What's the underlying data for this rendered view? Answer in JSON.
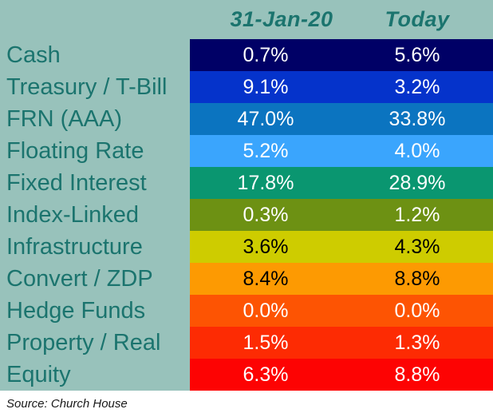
{
  "colors": {
    "background": "#98c2bb",
    "heading_text": "#1b746e",
    "label_text": "#1b746e",
    "footer_text": "#1a1a1a"
  },
  "header": {
    "col_jan": "31-Jan-20",
    "col_today": "Today"
  },
  "rows": [
    {
      "label": "Cash",
      "jan": "0.7%",
      "today": "5.6%",
      "color": "#000066",
      "text_color": "#ffffff"
    },
    {
      "label": "Treasury / T-Bill",
      "jan": "9.1%",
      "today": "3.2%",
      "color": "#0533cb",
      "text_color": "#ffffff"
    },
    {
      "label": "FRN (AAA)",
      "jan": "47.0%",
      "today": "33.8%",
      "color": "#0b74c0",
      "text_color": "#ffffff"
    },
    {
      "label": "Floating Rate",
      "jan": "5.2%",
      "today": "4.0%",
      "color": "#3aa5fd",
      "text_color": "#ffffff"
    },
    {
      "label": "Fixed Interest",
      "jan": "17.8%",
      "today": "28.9%",
      "color": "#0a9670",
      "text_color": "#ffffff"
    },
    {
      "label": "Index-Linked",
      "jan": "0.3%",
      "today": "1.2%",
      "color": "#6d9113",
      "text_color": "#ffffff"
    },
    {
      "label": "Infrastructure",
      "jan": "3.6%",
      "today": "4.3%",
      "color": "#cecc00",
      "text_color": "#000000"
    },
    {
      "label": "Convert / ZDP",
      "jan": "8.4%",
      "today": "8.8%",
      "color": "#fd9a02",
      "text_color": "#000000"
    },
    {
      "label": "Hedge Funds",
      "jan": "0.0%",
      "today": "0.0%",
      "color": "#fd5403",
      "text_color": "#ffffff"
    },
    {
      "label": "Property / Real",
      "jan": "1.5%",
      "today": "1.3%",
      "color": "#fd2b03",
      "text_color": "#ffffff"
    },
    {
      "label": "Equity",
      "jan": "6.3%",
      "today": "8.8%",
      "color": "#fd0303",
      "text_color": "#ffffff"
    }
  ],
  "footer": {
    "source": "Source: Church House"
  },
  "chart_data": {
    "type": "table",
    "title": "",
    "categories": [
      "Cash",
      "Treasury / T-Bill",
      "FRN (AAA)",
      "Floating Rate",
      "Fixed Interest",
      "Index-Linked",
      "Infrastructure",
      "Convert / ZDP",
      "Hedge Funds",
      "Property / Real",
      "Equity"
    ],
    "series": [
      {
        "name": "31-Jan-20",
        "values": [
          0.7,
          9.1,
          47.0,
          5.2,
          17.8,
          0.3,
          3.6,
          8.4,
          0.0,
          1.5,
          6.3
        ]
      },
      {
        "name": "Today",
        "values": [
          5.6,
          3.2,
          33.8,
          4.0,
          28.9,
          1.2,
          4.3,
          8.8,
          0.0,
          1.3,
          8.8
        ]
      }
    ],
    "units": "%",
    "row_colors": [
      "#000066",
      "#0533cb",
      "#0b74c0",
      "#3aa5fd",
      "#0a9670",
      "#6d9113",
      "#cecc00",
      "#fd9a02",
      "#fd5403",
      "#fd2b03",
      "#fd0303"
    ],
    "legend_position": "top",
    "grid": false,
    "source": "Source: Church House"
  }
}
